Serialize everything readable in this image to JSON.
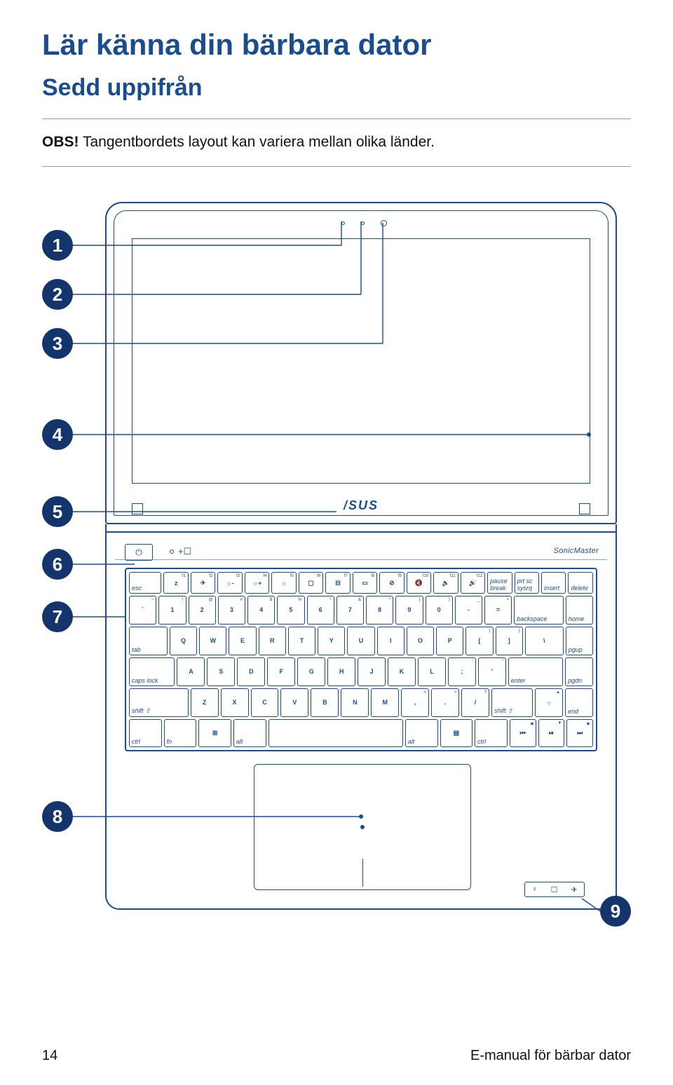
{
  "title_main": "Lär känna din bärbara dator",
  "title_sub": "Sedd uppifrån",
  "note_bold": "OBS!",
  "note_text": " Tangentbordets layout kan variera mellan olika länder.",
  "logo": "/SUS",
  "sonic_label": "SonicMaster",
  "power_glyph": "⏻",
  "callouts": [
    "1",
    "2",
    "3",
    "4",
    "5",
    "6",
    "7",
    "8",
    "9"
  ],
  "status_icons": [
    "♀",
    "☐",
    "✈"
  ],
  "keyboard": {
    "row0": [
      {
        "w": 1.4,
        "lbl": "esc"
      },
      {
        "w": 1,
        "up": "f1",
        "mid": "z"
      },
      {
        "w": 1,
        "up": "f2",
        "mid": "✈"
      },
      {
        "w": 1,
        "up": "f3",
        "mid": "☼-"
      },
      {
        "w": 1,
        "up": "f4",
        "mid": "☼+"
      },
      {
        "w": 1,
        "up": "f5",
        "mid": "☼"
      },
      {
        "w": 1,
        "up": "f6",
        "mid": "▢"
      },
      {
        "w": 1,
        "up": "f7",
        "mid": "⊟"
      },
      {
        "w": 1,
        "up": "f8",
        "mid": "▭"
      },
      {
        "w": 1,
        "up": "f9",
        "mid": "⊘"
      },
      {
        "w": 1,
        "up": "f10",
        "mid": "🔇"
      },
      {
        "w": 1,
        "up": "f11",
        "mid": "🔉"
      },
      {
        "w": 1,
        "up": "f12",
        "mid": "🔊"
      },
      {
        "w": 1,
        "lbl": "pause break"
      },
      {
        "w": 1,
        "lbl": "prt sc sysrq"
      },
      {
        "w": 1,
        "lbl": "insert"
      },
      {
        "w": 1,
        "lbl": "delete"
      }
    ],
    "row1": [
      {
        "w": 1,
        "up": "~",
        "mid": "`"
      },
      {
        "w": 1,
        "up": "!",
        "mid": "1"
      },
      {
        "w": 1,
        "up": "@",
        "mid": "2"
      },
      {
        "w": 1,
        "up": "#",
        "mid": "3"
      },
      {
        "w": 1,
        "up": "$",
        "mid": "4"
      },
      {
        "w": 1,
        "up": "%",
        "mid": "5"
      },
      {
        "w": 1,
        "up": "^",
        "mid": "6"
      },
      {
        "w": 1,
        "up": "&",
        "mid": "7"
      },
      {
        "w": 1,
        "up": "*",
        "mid": "8"
      },
      {
        "w": 1,
        "up": "(",
        "mid": "9"
      },
      {
        "w": 1,
        "up": ")",
        "mid": "0"
      },
      {
        "w": 1,
        "up": "_",
        "mid": "-"
      },
      {
        "w": 1,
        "up": "+",
        "mid": "="
      },
      {
        "w": 2,
        "lbl": "backspace"
      },
      {
        "w": 1,
        "lbl": "home"
      }
    ],
    "row2": [
      {
        "w": 1.5,
        "lbl": "tab"
      },
      {
        "w": 1,
        "mid": "Q"
      },
      {
        "w": 1,
        "mid": "W"
      },
      {
        "w": 1,
        "mid": "E"
      },
      {
        "w": 1,
        "mid": "R"
      },
      {
        "w": 1,
        "mid": "T"
      },
      {
        "w": 1,
        "mid": "Y"
      },
      {
        "w": 1,
        "mid": "U"
      },
      {
        "w": 1,
        "mid": "I"
      },
      {
        "w": 1,
        "mid": "O"
      },
      {
        "w": 1,
        "mid": "P"
      },
      {
        "w": 1,
        "up": "{",
        "mid": "["
      },
      {
        "w": 1,
        "up": "}",
        "mid": "]"
      },
      {
        "w": 1.5,
        "mid": "\\"
      },
      {
        "w": 1,
        "lbl": "pgup"
      }
    ],
    "row3": [
      {
        "w": 1.8,
        "lbl": "caps lock"
      },
      {
        "w": 1,
        "mid": "A"
      },
      {
        "w": 1,
        "mid": "S"
      },
      {
        "w": 1,
        "mid": "D"
      },
      {
        "w": 1,
        "mid": "F"
      },
      {
        "w": 1,
        "mid": "G"
      },
      {
        "w": 1,
        "mid": "H"
      },
      {
        "w": 1,
        "mid": "J"
      },
      {
        "w": 1,
        "mid": "K"
      },
      {
        "w": 1,
        "mid": "L"
      },
      {
        "w": 1,
        "up": ":",
        "mid": ";"
      },
      {
        "w": 1,
        "up": "\"",
        "mid": "'"
      },
      {
        "w": 2.2,
        "lbl": "enter"
      },
      {
        "w": 1,
        "lbl": "pgdn"
      }
    ],
    "row4": [
      {
        "w": 2.4,
        "lbl": "shift ⇧"
      },
      {
        "w": 1,
        "mid": "Z"
      },
      {
        "w": 1,
        "mid": "X"
      },
      {
        "w": 1,
        "mid": "C"
      },
      {
        "w": 1,
        "mid": "V"
      },
      {
        "w": 1,
        "mid": "B"
      },
      {
        "w": 1,
        "mid": "N"
      },
      {
        "w": 1,
        "mid": "M"
      },
      {
        "w": 1,
        "up": "<",
        "mid": ","
      },
      {
        "w": 1,
        "up": ">",
        "mid": "."
      },
      {
        "w": 1,
        "up": "?",
        "mid": "/"
      },
      {
        "w": 1.6,
        "lbl": "shift ⇧"
      },
      {
        "w": 1,
        "up": "▲",
        "mid": "☼"
      },
      {
        "w": 1,
        "lbl": "end"
      }
    ],
    "row5": [
      {
        "w": 1.3,
        "lbl": "ctrl"
      },
      {
        "w": 1.3,
        "lbl": "fn"
      },
      {
        "w": 1.3,
        "mid": "⊞"
      },
      {
        "w": 1.3,
        "lbl": "alt"
      },
      {
        "w": 6.2,
        "mid": ""
      },
      {
        "w": 1.3,
        "lbl": "alt"
      },
      {
        "w": 1.3,
        "mid": "▤"
      },
      {
        "w": 1.3,
        "lbl": "ctrl"
      },
      {
        "w": 1,
        "up": "◀",
        "mid": "⏮"
      },
      {
        "w": 1,
        "up": "▼",
        "mid": "⏯"
      },
      {
        "w": 1,
        "up": "▶",
        "mid": "⏭"
      }
    ]
  },
  "colors": {
    "accent": "#1a4d8f",
    "bubble": "#14356b",
    "text": "#111111"
  },
  "footer_page": "14",
  "footer_label": "E-manual för bärbar dator"
}
